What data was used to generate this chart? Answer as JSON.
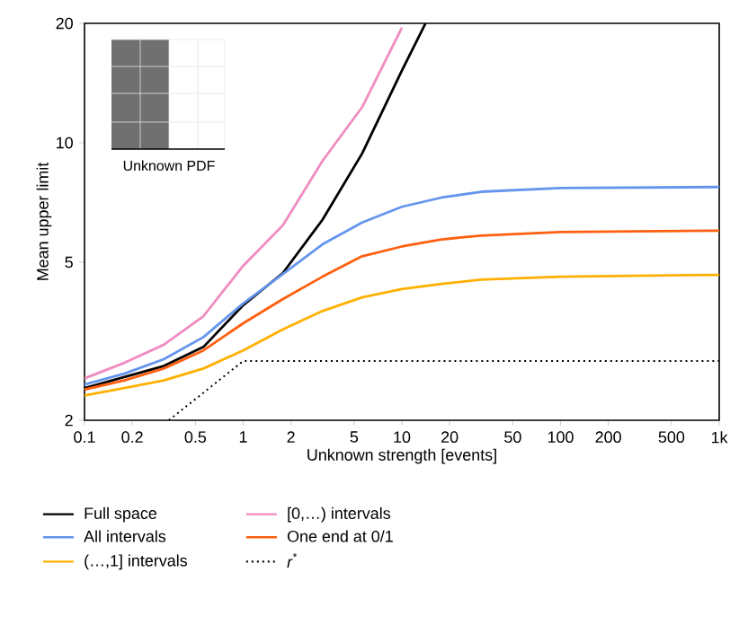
{
  "chart_data": {
    "type": "line",
    "xlabel": "Unknown strength [events]",
    "ylabel": "Mean upper limit",
    "log": "xy",
    "xlim": [
      0.1,
      1000
    ],
    "ylim": [
      2,
      20
    ],
    "xticks": [
      0.1,
      0.2,
      0.5,
      1,
      2,
      5,
      10,
      20,
      50,
      100,
      200,
      500,
      {
        "value": 1000,
        "label": "1k"
      }
    ],
    "yticks": [
      2,
      5,
      10,
      20
    ],
    "grid": false,
    "legend": "bottom",
    "marker": "none",
    "annotations": [
      "Unknown PDF"
    ],
    "series": [
      {
        "name": "Full space",
        "color": "#000000",
        "x": [
          0.1,
          0.178,
          0.316,
          0.562,
          1,
          1.78,
          3.16,
          5.62,
          10,
          14.1
        ],
        "values": [
          2.41,
          2.57,
          2.74,
          3.06,
          3.9,
          4.7,
          6.4,
          9.4,
          15.2,
          20
        ]
      },
      {
        "name": "All intervals",
        "color": "#6495ed",
        "x": [
          0.1,
          0.178,
          0.316,
          0.562,
          1,
          1.78,
          3.16,
          5.62,
          10,
          17.8,
          31.6,
          100,
          1000
        ],
        "values": [
          2.46,
          2.62,
          2.85,
          3.24,
          3.94,
          4.67,
          5.55,
          6.3,
          6.9,
          7.28,
          7.53,
          7.69,
          7.74
        ]
      },
      {
        "name": "(…,1] intervals",
        "color": "#ffb000",
        "x": [
          0.1,
          0.178,
          0.316,
          0.562,
          1,
          1.78,
          3.16,
          5.62,
          10,
          17.8,
          31.6,
          100,
          1000
        ],
        "values": [
          2.31,
          2.41,
          2.52,
          2.7,
          3.0,
          3.39,
          3.77,
          4.08,
          4.28,
          4.41,
          4.52,
          4.6,
          4.65
        ]
      },
      {
        "name": "[0,…) intervals",
        "color": "#f08cc0",
        "x": [
          0.1,
          0.178,
          0.316,
          0.562,
          1,
          1.78,
          3.16,
          5.62,
          10
        ],
        "values": [
          2.55,
          2.79,
          3.1,
          3.66,
          4.9,
          6.2,
          9.0,
          12.3,
          19.5
        ]
      },
      {
        "name": "One end at 0/1",
        "color": "#ff5f0f",
        "x": [
          0.1,
          0.178,
          0.316,
          0.562,
          1,
          1.78,
          3.16,
          5.62,
          10,
          17.8,
          31.6,
          100,
          1000
        ],
        "values": [
          2.39,
          2.52,
          2.7,
          3.0,
          3.51,
          4.04,
          4.6,
          5.18,
          5.48,
          5.71,
          5.84,
          5.96,
          6.01
        ]
      },
      {
        "name": "*r*$^{*}$",
        "color": "#000000",
        "line_style": "dotted",
        "x": [
          0.34,
          1,
          1000
        ],
        "values": [
          2,
          2.82,
          2.82
        ]
      }
    ]
  }
}
